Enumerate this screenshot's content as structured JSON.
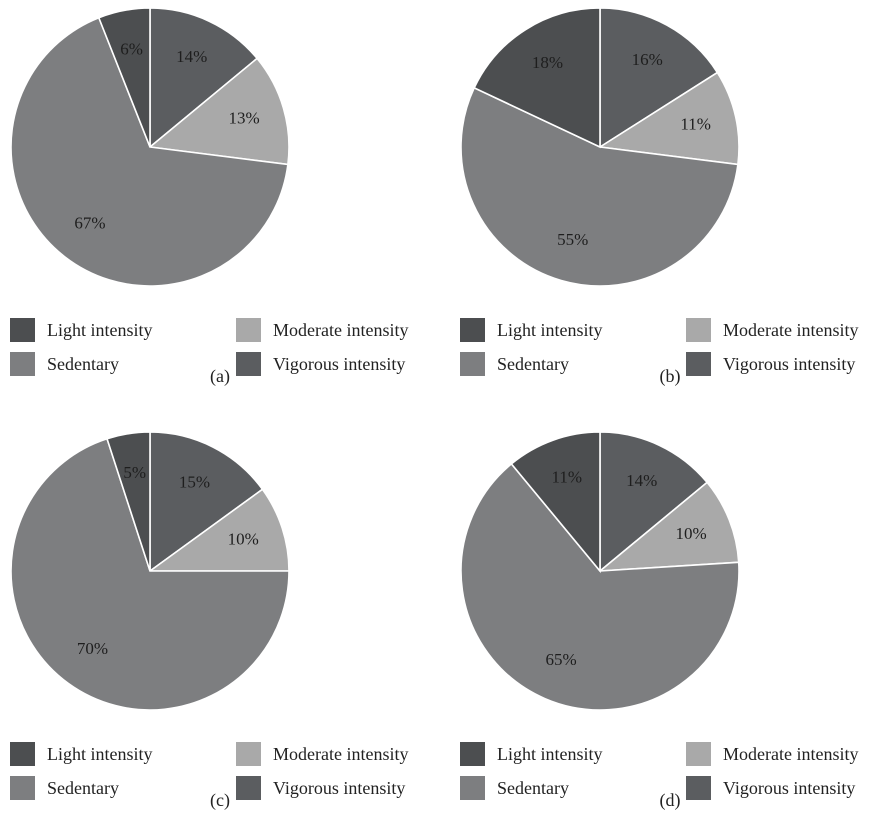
{
  "chart_data": [
    {
      "type": "pie",
      "caption": "(a)",
      "slices": [
        {
          "label": "Light intensity",
          "value": 14,
          "text": "14%",
          "color": "#5b5d60"
        },
        {
          "label": "Moderate intensity",
          "value": 13,
          "text": "13%",
          "color": "#a9a9a9"
        },
        {
          "label": "Sedentary",
          "value": 67,
          "text": "67%",
          "color": "#7d7e80"
        },
        {
          "label": "Vigorous intensity",
          "value": 6,
          "text": "6%",
          "color": "#4c4e50"
        }
      ],
      "legend": [
        {
          "label": "Light intensity",
          "color": "#4c4e50"
        },
        {
          "label": "Moderate intensity",
          "color": "#a9a9a9"
        },
        {
          "label": "Sedentary",
          "color": "#7d7e80"
        },
        {
          "label": "Vigorous intensity",
          "color": "#5b5d60"
        }
      ]
    },
    {
      "type": "pie",
      "caption": "(b)",
      "slices": [
        {
          "label": "Light intensity",
          "value": 16,
          "text": "16%",
          "color": "#5b5d60"
        },
        {
          "label": "Moderate intensity",
          "value": 11,
          "text": "11%",
          "color": "#a9a9a9"
        },
        {
          "label": "Sedentary",
          "value": 55,
          "text": "55%",
          "color": "#7d7e80"
        },
        {
          "label": "Vigorous intensity",
          "value": 18,
          "text": "18%",
          "color": "#4c4e50"
        }
      ],
      "legend": [
        {
          "label": "Light intensity",
          "color": "#4c4e50"
        },
        {
          "label": "Moderate intensity",
          "color": "#a9a9a9"
        },
        {
          "label": "Sedentary",
          "color": "#7d7e80"
        },
        {
          "label": "Vigorous intensity",
          "color": "#5b5d60"
        }
      ]
    },
    {
      "type": "pie",
      "caption": "(c)",
      "slices": [
        {
          "label": "Light intensity",
          "value": 15,
          "text": "15%",
          "color": "#5b5d60"
        },
        {
          "label": "Moderate intensity",
          "value": 10,
          "text": "10%",
          "color": "#a9a9a9"
        },
        {
          "label": "Sedentary",
          "value": 70,
          "text": "70%",
          "color": "#7d7e80"
        },
        {
          "label": "Vigorous intensity",
          "value": 5,
          "text": "5%",
          "color": "#4c4e50"
        }
      ],
      "legend": [
        {
          "label": "Light intensity",
          "color": "#4c4e50"
        },
        {
          "label": "Moderate intensity",
          "color": "#a9a9a9"
        },
        {
          "label": "Sedentary",
          "color": "#7d7e80"
        },
        {
          "label": "Vigorous intensity",
          "color": "#5b5d60"
        }
      ]
    },
    {
      "type": "pie",
      "caption": "(d)",
      "slices": [
        {
          "label": "Light intensity",
          "value": 14,
          "text": "14%",
          "color": "#5b5d60"
        },
        {
          "label": "Moderate intensity",
          "value": 10,
          "text": "10%",
          "color": "#a9a9a9"
        },
        {
          "label": "Sedentary",
          "value": 65,
          "text": "65%",
          "color": "#7d7e80"
        },
        {
          "label": "Vigorous intensity",
          "value": 11,
          "text": "11%",
          "color": "#4c4e50"
        }
      ],
      "legend": [
        {
          "label": "Light intensity",
          "color": "#4c4e50"
        },
        {
          "label": "Moderate intensity",
          "color": "#a9a9a9"
        },
        {
          "label": "Sedentary",
          "color": "#7d7e80"
        },
        {
          "label": "Vigorous intensity",
          "color": "#5b5d60"
        }
      ]
    }
  ]
}
